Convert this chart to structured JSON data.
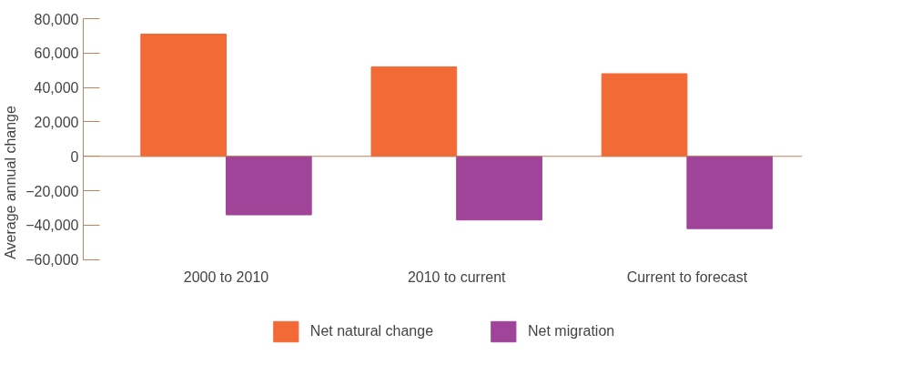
{
  "chart_data": {
    "type": "bar",
    "ylabel": "Average annual change",
    "categories": [
      "2000 to 2010",
      "2010 to current",
      "Current to forecast"
    ],
    "series": [
      {
        "name": "Net natural change",
        "color": "#f26a36",
        "values": [
          71000,
          52000,
          48000
        ]
      },
      {
        "name": "Net migration",
        "color": "#a0449a",
        "values": [
          -34000,
          -37000,
          -42000
        ]
      }
    ],
    "ylim": [
      -60000,
      80000
    ],
    "yticks": [
      {
        "value": -60000,
        "label": "−60,000"
      },
      {
        "value": -40000,
        "label": "−40,000"
      },
      {
        "value": -20000,
        "label": "−20,000"
      },
      {
        "value": 0,
        "label": "0"
      },
      {
        "value": 20000,
        "label": "20,000"
      },
      {
        "value": 40000,
        "label": "40,000"
      },
      {
        "value": 60000,
        "label": "60,000"
      },
      {
        "value": 80000,
        "label": "80,000"
      }
    ],
    "ref_lines": [
      {
        "axis": "y",
        "value": 0,
        "color": "#c0825a"
      }
    ],
    "grid": false,
    "legend": "bottom"
  }
}
